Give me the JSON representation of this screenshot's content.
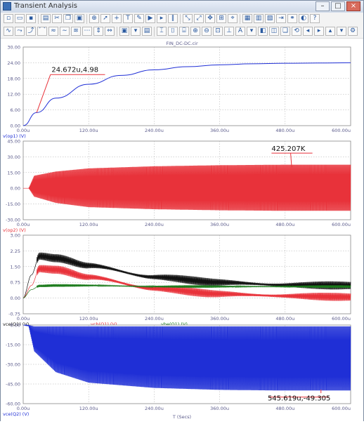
{
  "window": {
    "title": "Transient Analysis"
  },
  "file_label": "FIN_DC-DC.cir",
  "xaxis_title": "T (Secs)",
  "x_ticks": [
    "0.00u",
    "120.00u",
    "240.00u",
    "360.00u",
    "480.00u",
    "600.00u"
  ],
  "colors": {
    "blue": "#1f2fd6",
    "red": "#e8323a",
    "black": "#111111",
    "green": "#1a7a1a",
    "axis": "#888888",
    "label": "#5b5b8b"
  },
  "panels": [
    {
      "id": "p1",
      "y_ticks": [
        "30.00",
        "24.00",
        "18.00",
        "12.00",
        "6.00",
        "0.00"
      ],
      "ylim": [
        0,
        30
      ],
      "legend": [
        {
          "text": "v(op1) (V)",
          "color": "#1f2fd6"
        }
      ],
      "cursor_label": "24.672u,4.98"
    },
    {
      "id": "p2",
      "y_ticks": [
        "45.00",
        "30.00",
        "15.00",
        "0.00",
        "-15.00",
        "-30.00"
      ],
      "ylim": [
        -30,
        45
      ],
      "legend": [
        {
          "text": "v(op2) (V)",
          "color": "#e8323a"
        }
      ],
      "cursor_label": "425.207K"
    },
    {
      "id": "p3",
      "y_ticks": [
        "3.00",
        "2.25",
        "1.50",
        "0.75",
        "0.00",
        "-0.75"
      ],
      "ylim": [
        -0.75,
        3
      ],
      "legend": [
        {
          "text": "vce(Q1) (V)",
          "color": "#111111"
        },
        {
          "text": "vcb(Q1) (V)",
          "color": "#e8323a"
        },
        {
          "text": "vbe(Q1) (V)",
          "color": "#1a7a1a"
        }
      ],
      "cursor_label": ""
    },
    {
      "id": "p4",
      "y_ticks": [
        "0.00",
        "-15.00",
        "-30.00",
        "-45.00",
        "-60.00"
      ],
      "ylim": [
        -60,
        0
      ],
      "legend": [
        {
          "text": "vce(Q2) (V)",
          "color": "#1f2fd6"
        }
      ],
      "cursor_label": "545.619u,-49.305"
    }
  ],
  "chart_data": [
    {
      "type": "line",
      "title": "FIN_DC-DC.cir",
      "xlabel": "T (Secs)",
      "ylabel": "",
      "xlim": [
        0,
        600
      ],
      "ylim": [
        0,
        30
      ],
      "series": [
        {
          "name": "v(op1) (V)",
          "x": [
            0,
            24.672,
            60,
            120,
            180,
            240,
            300,
            360,
            420,
            480,
            540,
            600
          ],
          "values": [
            0,
            4.98,
            10.5,
            15.8,
            19.2,
            21.3,
            22.5,
            23.2,
            23.6,
            23.8,
            23.9,
            24.0
          ]
        }
      ],
      "annotations": [
        "24.672u,4.98"
      ]
    },
    {
      "type": "line",
      "xlabel": "T (Secs)",
      "xlim": [
        0,
        600
      ],
      "ylim": [
        -30,
        45
      ],
      "series": [
        {
          "name": "v(op2) (V)",
          "x": [
            0,
            10,
            20,
            60,
            120,
            240,
            360,
            480,
            600
          ],
          "envelope_max": [
            0,
            0,
            12,
            16,
            19,
            21,
            22,
            22.5,
            22.5
          ],
          "envelope_min": [
            0,
            0,
            -8,
            -14,
            -18,
            -20,
            -21,
            -21.5,
            -21.5
          ]
        }
      ],
      "annotations": [
        "425.207K"
      ]
    },
    {
      "type": "line",
      "xlabel": "T (Secs)",
      "xlim": [
        0,
        600
      ],
      "ylim": [
        -0.75,
        3
      ],
      "series": [
        {
          "name": "vce(Q1) (V)",
          "x": [
            0,
            15,
            30,
            60,
            120,
            240,
            360,
            480,
            600
          ],
          "values": [
            0,
            1.1,
            2.0,
            1.9,
            1.55,
            1.0,
            0.75,
            0.62,
            0.6
          ]
        },
        {
          "name": "vcb(Q1) (V)",
          "x": [
            0,
            15,
            30,
            60,
            120,
            240,
            360,
            480,
            600
          ],
          "values": [
            0,
            0.6,
            1.4,
            1.35,
            1.0,
            0.45,
            0.2,
            0.1,
            0.05
          ]
        },
        {
          "name": "vbe(Q1) (V)",
          "x": [
            0,
            15,
            30,
            60,
            120,
            240,
            360,
            480,
            600
          ],
          "values": [
            0,
            0.4,
            0.58,
            0.6,
            0.6,
            0.55,
            0.55,
            0.55,
            0.55
          ]
        }
      ]
    },
    {
      "type": "line",
      "xlabel": "T (Secs)",
      "xlim": [
        0,
        600
      ],
      "ylim": [
        -60,
        0
      ],
      "series": [
        {
          "name": "vce(Q2) (V)",
          "x": [
            0,
            10,
            20,
            60,
            120,
            240,
            360,
            480,
            600
          ],
          "envelope_max": [
            0,
            0,
            -1,
            -1,
            -1,
            -1,
            -1,
            -1,
            -1
          ],
          "envelope_min": [
            0,
            -1,
            -20,
            -36,
            -44,
            -48,
            -49.5,
            -50,
            -50
          ]
        }
      ],
      "annotations": [
        "545.619u,-49.305"
      ]
    }
  ]
}
